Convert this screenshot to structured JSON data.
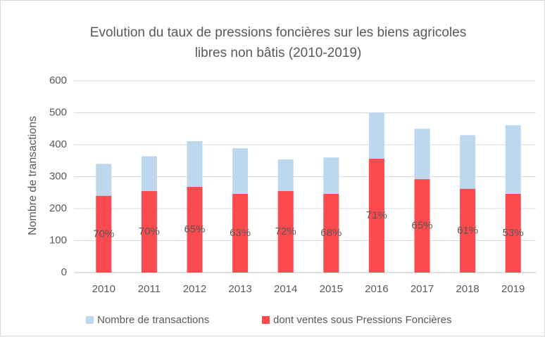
{
  "chart_data": {
    "type": "bar",
    "title": [
      "Evolution du taux de pressions foncières sur les biens agricoles",
      "libres non bâtis (2010-2019)"
    ],
    "y_label": "Nombre de transactions",
    "categories": [
      "2010",
      "2011",
      "2012",
      "2013",
      "2014",
      "2015",
      "2016",
      "2017",
      "2018",
      "2019"
    ],
    "series": [
      {
        "name": "Nombre de transactions",
        "color": "#bdd7ee",
        "values": [
          340,
          364,
          411,
          389,
          354,
          360,
          500,
          450,
          430,
          461
        ]
      },
      {
        "name": "dont ventes sous Pressions Foncières",
        "color": "#fb4b4e",
        "values": [
          240,
          255,
          268,
          246,
          255,
          246,
          356,
          292,
          262,
          246
        ]
      }
    ],
    "annotations": [
      "70%",
      "70%",
      "65%",
      "63%",
      "72%",
      "68%",
      "71%",
      "65%",
      "61%",
      "53%"
    ],
    "overlap": true,
    "ylim": [
      0,
      600
    ],
    "yticks": [
      0,
      100,
      200,
      300,
      400,
      500,
      600
    ],
    "grid": true,
    "legend": "bottom"
  }
}
